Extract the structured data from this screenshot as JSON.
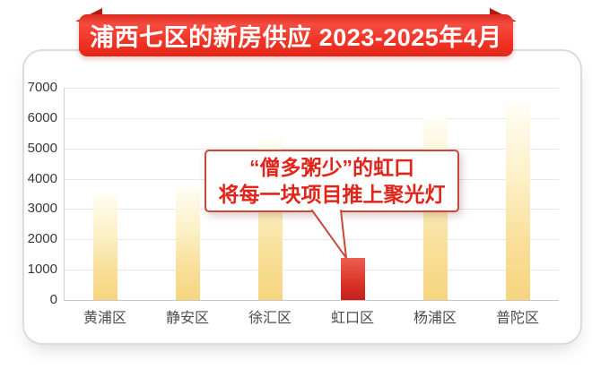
{
  "banner": {
    "title": "浦西七区的新房供应 2023-2025年4月"
  },
  "annotation": {
    "line1": "“僧多粥少”的虹口",
    "line2": "将每一块项目推上聚光灯"
  },
  "chart_data": {
    "type": "bar",
    "title": "浦西七区的新房供应 2023-2025年4月",
    "categories": [
      "黄浦区",
      "静安区",
      "徐汇区",
      "虹口区",
      "杨浦区",
      "普陀区"
    ],
    "values": [
      3500,
      3700,
      5300,
      1400,
      6000,
      6400
    ],
    "highlight": {
      "index": 3,
      "category": "虹口区",
      "note": "“僧多粥少”的虹口 将每一块项目推上聚光灯"
    },
    "xlabel": "",
    "ylabel": "",
    "ylim": [
      0,
      7000
    ],
    "ytick_step": 1000,
    "yticks": [
      0,
      1000,
      2000,
      3000,
      4000,
      5000,
      6000,
      7000
    ],
    "grid": true,
    "legend": false
  },
  "colors": {
    "banner_red": "#f0382c",
    "banner_fold_red": "#b21b10",
    "banner_text": "#ffffff",
    "bar_yellow_top": "#fffdf3",
    "bar_yellow_bottom": "#f5d57e",
    "bar_red_top": "#ec5f4f",
    "bar_red_bottom": "#c71e1b",
    "annotation_red": "#e1251b",
    "annotation_border": "#c8483c",
    "gridline": "#e7e7e7",
    "card_border": "#dcdcdc",
    "axis_text": "#383838"
  }
}
